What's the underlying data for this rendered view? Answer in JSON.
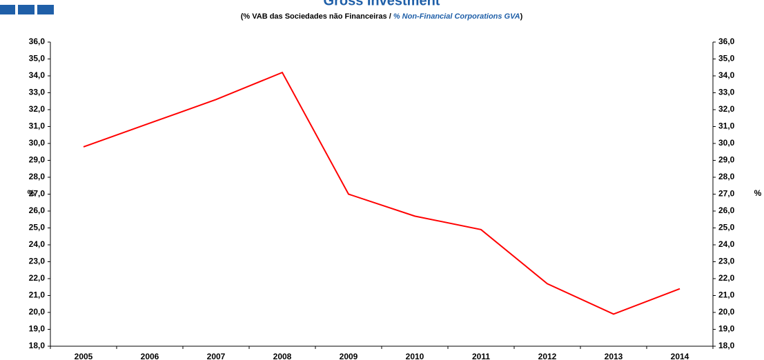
{
  "chart_data": {
    "type": "line",
    "title": "Gross Investment",
    "subtitle": [
      "(% VAB das Sociedades não Financeiras / ",
      "% Non-Financial Corporations GVA",
      ")"
    ],
    "ylabel": "%",
    "y2label": "%",
    "categories": [
      "2005",
      "2006",
      "2007",
      "2008",
      "2009",
      "2010",
      "2011",
      "2012",
      "2013",
      "2014"
    ],
    "series": [
      {
        "name": "Gross Investment",
        "color": "#ff0000",
        "values": [
          29.8,
          31.2,
          32.6,
          34.2,
          27.0,
          25.7,
          24.9,
          21.7,
          19.9,
          21.4
        ]
      }
    ],
    "ylim": [
      18,
      36
    ],
    "yticks": [
      {
        "value": 18,
        "label": "18,0"
      },
      {
        "value": 19,
        "label": "19,0"
      },
      {
        "value": 20,
        "label": "20,0"
      },
      {
        "value": 21,
        "label": "21,0"
      },
      {
        "value": 22,
        "label": "22,0"
      },
      {
        "value": 23,
        "label": "23,0"
      },
      {
        "value": 24,
        "label": "24,0"
      },
      {
        "value": 25,
        "label": "25,0"
      },
      {
        "value": 26,
        "label": "26,0"
      },
      {
        "value": 27,
        "label": "27,0"
      },
      {
        "value": 28,
        "label": "28,0"
      },
      {
        "value": 29,
        "label": "29,0"
      },
      {
        "value": 30,
        "label": "30,0"
      },
      {
        "value": 31,
        "label": "31,0"
      },
      {
        "value": 32,
        "label": "32,0"
      },
      {
        "value": 33,
        "label": "33,0"
      },
      {
        "value": 34,
        "label": "34,0"
      },
      {
        "value": 35,
        "label": "35,0"
      },
      {
        "value": 36,
        "label": "36,0"
      }
    ],
    "y2lim": [
      18,
      36
    ],
    "y2ticks": [
      {
        "value": 18,
        "label": "18,0"
      },
      {
        "value": 19,
        "label": "19,0"
      },
      {
        "value": 20,
        "label": "20,0"
      },
      {
        "value": 21,
        "label": "21,0"
      },
      {
        "value": 22,
        "label": "22,0"
      },
      {
        "value": 23,
        "label": "23,0"
      },
      {
        "value": 24,
        "label": "24,0"
      },
      {
        "value": 25,
        "label": "25,0"
      },
      {
        "value": 26,
        "label": "26,0"
      },
      {
        "value": 27,
        "label": "27,0"
      },
      {
        "value": 28,
        "label": "28,0"
      },
      {
        "value": 29,
        "label": "29,0"
      },
      {
        "value": 30,
        "label": "30,0"
      },
      {
        "value": 31,
        "label": "31,0"
      },
      {
        "value": 32,
        "label": "32,0"
      },
      {
        "value": 33,
        "label": "33,0"
      },
      {
        "value": 34,
        "label": "34,0"
      },
      {
        "value": 35,
        "label": "35,0"
      },
      {
        "value": 36,
        "label": "36,0"
      }
    ],
    "grid": false
  }
}
